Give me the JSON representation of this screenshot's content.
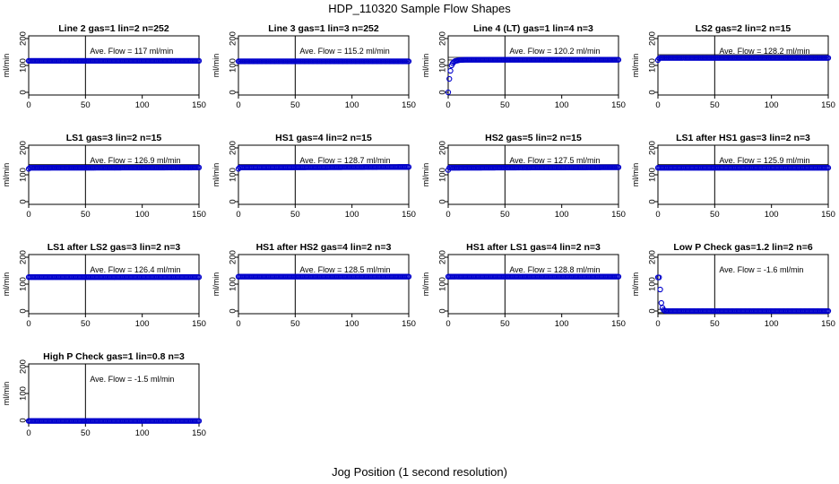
{
  "figure": {
    "title": "HDP_110320  Sample Flow Shapes",
    "xlabel": "Jog Position (1 second resolution)"
  },
  "chart_data": [
    {
      "type": "scatter",
      "title": "Line 2 gas=1 lin=2 n=252",
      "ylabel": "ml/min",
      "xlim": [
        0,
        150
      ],
      "ylim": [
        -10,
        210
      ],
      "xticks": [
        0,
        50,
        100,
        150
      ],
      "yticks": [
        0,
        100,
        200
      ],
      "vline": 50,
      "hlines": [
        117
      ],
      "annotation": "Ave. Flow =  117  ml/min",
      "series": [
        {
          "x": [
            0,
            150
          ],
          "y": [
            117,
            117
          ],
          "shape": "flat"
        }
      ]
    },
    {
      "type": "scatter",
      "title": "Line 3 gas=1 lin=3 n=252",
      "ylabel": "ml/min",
      "xlim": [
        0,
        150
      ],
      "ylim": [
        -10,
        210
      ],
      "xticks": [
        0,
        50,
        100,
        150
      ],
      "yticks": [
        0,
        100,
        200
      ],
      "vline": 50,
      "hlines": [
        115.2
      ],
      "annotation": "Ave. Flow =  115.2  ml/min",
      "series": [
        {
          "x": [
            0,
            150
          ],
          "y": [
            115.2,
            115.2
          ],
          "shape": "flat"
        }
      ]
    },
    {
      "type": "scatter",
      "title": "Line 4 (LT) gas=1 lin=4 n=3",
      "ylabel": "ml/min",
      "xlim": [
        0,
        150
      ],
      "ylim": [
        -10,
        210
      ],
      "xticks": [
        0,
        50,
        100,
        150
      ],
      "yticks": [
        0,
        100,
        200
      ],
      "vline": 50,
      "hlines": [
        120.2,
        130
      ],
      "annotation": "Ave. Flow =  120.2  ml/min",
      "series": [
        {
          "x": [
            0,
            1,
            2,
            3,
            4,
            5,
            6,
            8,
            10,
            15,
            150
          ],
          "y": [
            0,
            50,
            80,
            100,
            108,
            113,
            116,
            118,
            120,
            121,
            121
          ],
          "shape": "rise"
        }
      ]
    },
    {
      "type": "scatter",
      "title": "LS2 gas=2 lin=2 n=15",
      "ylabel": "ml/min",
      "xlim": [
        0,
        150
      ],
      "ylim": [
        -10,
        210
      ],
      "xticks": [
        0,
        50,
        100,
        150
      ],
      "yticks": [
        0,
        100,
        200
      ],
      "vline": 50,
      "hlines": [
        128.2,
        140
      ],
      "annotation": "Ave. Flow =  128.2  ml/min",
      "series": [
        {
          "x": [
            0,
            1,
            2,
            150
          ],
          "y": [
            120,
            126,
            128,
            128
          ],
          "shape": "flat"
        }
      ]
    },
    {
      "type": "scatter",
      "title": "LS1 gas=3 lin=2 n=15",
      "ylabel": "ml/min",
      "xlim": [
        0,
        150
      ],
      "ylim": [
        -10,
        210
      ],
      "xticks": [
        0,
        50,
        100,
        150
      ],
      "yticks": [
        0,
        100,
        200
      ],
      "vline": 50,
      "hlines": [
        126.9,
        138
      ],
      "annotation": "Ave. Flow =  126.9  ml/min",
      "series": [
        {
          "x": [
            0,
            1,
            150
          ],
          "y": [
            122,
            126,
            127
          ],
          "shape": "flat"
        }
      ]
    },
    {
      "type": "scatter",
      "title": "HS1 gas=4 lin=2 n=15",
      "ylabel": "ml/min",
      "xlim": [
        0,
        150
      ],
      "ylim": [
        -10,
        210
      ],
      "xticks": [
        0,
        50,
        100,
        150
      ],
      "yticks": [
        0,
        100,
        200
      ],
      "vline": 50,
      "hlines": [
        120,
        138
      ],
      "annotation": "Ave. Flow =  128.7  ml/min",
      "series": [
        {
          "x": [
            0,
            1,
            150
          ],
          "y": [
            122,
            127,
            129
          ],
          "shape": "flat"
        }
      ]
    },
    {
      "type": "scatter",
      "title": "HS2 gas=5 lin=2 n=15",
      "ylabel": "ml/min",
      "xlim": [
        0,
        150
      ],
      "ylim": [
        -10,
        210
      ],
      "xticks": [
        0,
        50,
        100,
        150
      ],
      "yticks": [
        0,
        100,
        200
      ],
      "vline": 50,
      "hlines": [
        127.5,
        138
      ],
      "annotation": "Ave. Flow =  127.5  ml/min",
      "series": [
        {
          "x": [
            0,
            1,
            150
          ],
          "y": [
            118,
            126,
            128
          ],
          "shape": "flat"
        }
      ]
    },
    {
      "type": "scatter",
      "title": "LS1 after HS1 gas=3 lin=2 n=3",
      "ylabel": "ml/min",
      "xlim": [
        0,
        150
      ],
      "ylim": [
        -10,
        210
      ],
      "xticks": [
        0,
        50,
        100,
        150
      ],
      "yticks": [
        0,
        100,
        200
      ],
      "vline": 50,
      "hlines": [
        120,
        138
      ],
      "annotation": "Ave. Flow =  125.9  ml/min",
      "series": [
        {
          "x": [
            0,
            150
          ],
          "y": [
            126,
            126
          ],
          "shape": "flat"
        }
      ]
    },
    {
      "type": "scatter",
      "title": "LS1 after LS2 gas=3 lin=2 n=3",
      "ylabel": "ml/min",
      "xlim": [
        0,
        150
      ],
      "ylim": [
        -10,
        210
      ],
      "xticks": [
        0,
        50,
        100,
        150
      ],
      "yticks": [
        0,
        100,
        200
      ],
      "vline": 50,
      "hlines": [
        120,
        135
      ],
      "annotation": "Ave. Flow =  126.4  ml/min",
      "series": [
        {
          "x": [
            0,
            150
          ],
          "y": [
            126,
            126
          ],
          "shape": "flat"
        }
      ]
    },
    {
      "type": "scatter",
      "title": "HS1 after HS2 gas=4 lin=2 n=3",
      "ylabel": "ml/min",
      "xlim": [
        0,
        150
      ],
      "ylim": [
        -10,
        210
      ],
      "xticks": [
        0,
        50,
        100,
        150
      ],
      "yticks": [
        0,
        100,
        200
      ],
      "vline": 50,
      "hlines": [
        120,
        135
      ],
      "annotation": "Ave. Flow =  128.5  ml/min",
      "series": [
        {
          "x": [
            0,
            150
          ],
          "y": [
            128,
            128
          ],
          "shape": "flat"
        }
      ]
    },
    {
      "type": "scatter",
      "title": "HS1 after LS1 gas=4 lin=2 n=3",
      "ylabel": "ml/min",
      "xlim": [
        0,
        150
      ],
      "ylim": [
        -10,
        210
      ],
      "xticks": [
        0,
        50,
        100,
        150
      ],
      "yticks": [
        0,
        100,
        200
      ],
      "vline": 50,
      "hlines": [
        120,
        135
      ],
      "annotation": "Ave. Flow =  128.8  ml/min",
      "series": [
        {
          "x": [
            0,
            150
          ],
          "y": [
            128,
            128
          ],
          "shape": "flat"
        }
      ]
    },
    {
      "type": "scatter",
      "title": "Low P Check gas=1.2 lin=2 n=6",
      "ylabel": "ml/min",
      "xlim": [
        0,
        150
      ],
      "ylim": [
        -10,
        210
      ],
      "xticks": [
        0,
        50,
        100,
        150
      ],
      "yticks": [
        0,
        100,
        200
      ],
      "vline": 50,
      "hlines": [
        -6,
        6
      ],
      "annotation": "Ave. Flow =  -1.6  ml/min",
      "series": [
        {
          "x": [
            1,
            2,
            3,
            4,
            5,
            6,
            8,
            150
          ],
          "y": [
            125,
            80,
            30,
            12,
            4,
            1,
            0,
            0
          ],
          "shape": "decay"
        }
      ]
    },
    {
      "type": "scatter",
      "title": "High P Check gas=1 lin=0.8 n=3",
      "ylabel": "ml/min",
      "xlim": [
        0,
        150
      ],
      "ylim": [
        -10,
        210
      ],
      "xticks": [
        0,
        50,
        100,
        150
      ],
      "yticks": [
        0,
        100,
        200
      ],
      "vline": 50,
      "hlines": [],
      "annotation": "Ave. Flow =  -1.5  ml/min",
      "series": [
        {
          "x": [
            0,
            150
          ],
          "y": [
            -2,
            -2
          ],
          "shape": "flat"
        }
      ]
    }
  ]
}
